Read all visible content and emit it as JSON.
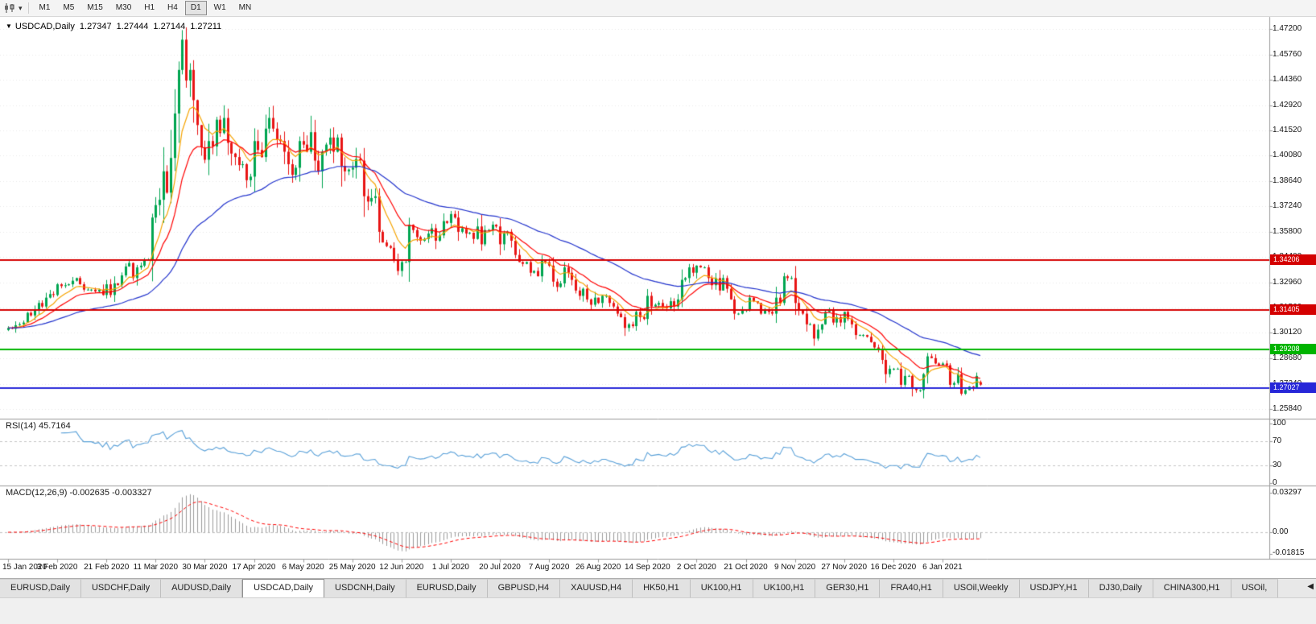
{
  "toolbar": {
    "tool_icon": "chart-periods-icon",
    "dropdown_icon": "▾",
    "timeframes": [
      "M1",
      "M5",
      "M15",
      "M30",
      "H1",
      "H4",
      "D1",
      "W1",
      "MN"
    ],
    "active_timeframe": "D1"
  },
  "chart_header": {
    "collapse_icon": "▼",
    "symbol": "USDCAD,Daily",
    "open": "1.27347",
    "high": "1.27444",
    "low": "1.27144",
    "close": "1.27211"
  },
  "price_axis": {
    "labels": [
      "1.47200",
      "1.45760",
      "1.44360",
      "1.42920",
      "1.41520",
      "1.40080",
      "1.38640",
      "1.37240",
      "1.35800",
      "1.34400",
      "1.32960",
      "1.31560",
      "1.30120",
      "1.28680",
      "1.27240",
      "1.25840"
    ]
  },
  "rsi": {
    "label": "RSI(14) 45.7164",
    "value": 45.7164,
    "axis_labels": [
      "100",
      "70",
      "30",
      "0"
    ],
    "levels": [
      70,
      30
    ]
  },
  "macd": {
    "label": "MACD(12,26,9) -0.002635 -0.003327",
    "macd_value": -0.002635,
    "signal_value": -0.003327,
    "axis_top": "0.03297",
    "axis_zero": "0.00",
    "axis_bottom": "-0.01815"
  },
  "date_axis": {
    "labels": [
      "15 Jan 2020",
      "3 Feb 2020",
      "21 Feb 2020",
      "11 Mar 2020",
      "30 Mar 2020",
      "17 Apr 2020",
      "6 May 2020",
      "25 May 2020",
      "12 Jun 2020",
      "1 Jul 2020",
      "20 Jul 2020",
      "7 Aug 2020",
      "26 Aug 2020",
      "14 Sep 2020",
      "2 Oct 2020",
      "21 Oct 2020",
      "9 Nov 2020",
      "27 Nov 2020",
      "16 Dec 2020",
      "6 Jan 2021"
    ]
  },
  "tabs": {
    "active_index": 3,
    "scroll_left_icon": "◀",
    "items": [
      {
        "label": "EURUSD,Daily"
      },
      {
        "label": "USDCHF,Daily"
      },
      {
        "label": "AUDUSD,Daily"
      },
      {
        "label": "USDCAD,Daily"
      },
      {
        "label": "USDCNH,Daily"
      },
      {
        "label": "EURUSD,Daily"
      },
      {
        "label": "GBPUSD,H4"
      },
      {
        "label": "XAUUSD,H4"
      },
      {
        "label": "HK50,H1"
      },
      {
        "label": "UK100,H1"
      },
      {
        "label": "UK100,H1"
      },
      {
        "label": "GER30,H1"
      },
      {
        "label": "FRA40,H1"
      },
      {
        "label": "USOil,Weekly"
      },
      {
        "label": "USDJPY,H1"
      },
      {
        "label": "DJ30,Daily"
      },
      {
        "label": "CHINA300,H1"
      },
      {
        "label": "USOil,"
      }
    ]
  },
  "chart_data": {
    "type": "candlestick",
    "symbol": "USDCAD",
    "timeframe": "Daily",
    "title": "USDCAD,Daily",
    "x_range": [
      "15 Jan 2020",
      "12 Jan 2021"
    ],
    "y_range": [
      1.2584,
      1.472
    ],
    "last_candle_ohlc": {
      "open": 1.27347,
      "high": 1.27444,
      "low": 1.27144,
      "close": 1.27211
    },
    "colors": {
      "bull": "#00a550",
      "bear": "#e81414"
    },
    "closes": [
      1.304,
      1.3035,
      1.3055,
      1.306,
      1.307,
      1.3125,
      1.311,
      1.3145,
      1.318,
      1.316,
      1.321,
      1.323,
      1.3225,
      1.3285,
      1.3275,
      1.328,
      1.3285,
      1.3305,
      1.332,
      1.3285,
      1.3255,
      1.3255,
      1.3255,
      1.3245,
      1.3255,
      1.3225,
      1.3285,
      1.3225,
      1.329,
      1.328,
      1.3335,
      1.3385,
      1.3405,
      1.332,
      1.338,
      1.339,
      1.342,
      1.3425,
      1.366,
      1.373,
      1.376,
      1.392,
      1.38,
      1.3995,
      1.4245,
      1.449,
      1.466,
      1.443,
      1.449,
      1.432,
      1.418,
      1.4055,
      1.3985,
      1.409,
      1.406,
      1.421,
      1.4135,
      1.422,
      1.408,
      1.402,
      1.4,
      1.3955,
      1.396,
      1.387,
      1.389,
      1.409,
      1.404,
      1.4,
      1.416,
      1.422,
      1.416,
      1.41,
      1.409,
      1.403,
      1.396,
      1.39,
      1.394,
      1.409,
      1.407,
      1.403,
      1.414,
      1.398,
      1.392,
      1.403,
      1.407,
      1.411,
      1.403,
      1.411,
      1.395,
      1.392,
      1.393,
      1.394,
      1.399,
      1.398,
      1.378,
      1.375,
      1.377,
      1.378,
      1.358,
      1.352,
      1.35,
      1.349,
      1.342,
      1.336,
      1.341,
      1.341,
      1.362,
      1.359,
      1.355,
      1.353,
      1.354,
      1.357,
      1.36,
      1.353,
      1.356,
      1.364,
      1.363,
      1.368,
      1.366,
      1.358,
      1.36,
      1.357,
      1.3575,
      1.354,
      1.361,
      1.351,
      1.359,
      1.359,
      1.362,
      1.361,
      1.351,
      1.357,
      1.358,
      1.353,
      1.345,
      1.341,
      1.34,
      1.341,
      1.335,
      1.336,
      1.333,
      1.342,
      1.341,
      1.339,
      1.33,
      1.327,
      1.329,
      1.338,
      1.335,
      1.331,
      1.325,
      1.322,
      1.326,
      1.32,
      1.317,
      1.321,
      1.318,
      1.322,
      1.322,
      1.318,
      1.316,
      1.312,
      1.31,
      1.304,
      1.306,
      1.305,
      1.313,
      1.31,
      1.309,
      1.322,
      1.316,
      1.317,
      1.318,
      1.316,
      1.315,
      1.319,
      1.316,
      1.32,
      1.331,
      1.332,
      1.338,
      1.335,
      1.339,
      1.338,
      1.338,
      1.332,
      1.328,
      1.332,
      1.325,
      1.332,
      1.326,
      1.32,
      1.312,
      1.312,
      1.314,
      1.314,
      1.321,
      1.319,
      1.318,
      1.312,
      1.314,
      1.313,
      1.312,
      1.321,
      1.318,
      1.333,
      1.332,
      1.332,
      1.318,
      1.314,
      1.312,
      1.306,
      1.306,
      1.298,
      1.303,
      1.306,
      1.313,
      1.314,
      1.307,
      1.31,
      1.307,
      1.313,
      1.309,
      1.306,
      1.3,
      1.3,
      1.3,
      1.299,
      1.296,
      1.293,
      1.292,
      1.286,
      1.278,
      1.281,
      1.281,
      1.281,
      1.272,
      1.277,
      1.277,
      1.27,
      1.269,
      1.269,
      1.278,
      1.288,
      1.287,
      1.284,
      1.283,
      1.284,
      1.283,
      1.272,
      1.273,
      1.278,
      1.267,
      1.269,
      1.271,
      1.27,
      1.277,
      1.2721
    ],
    "moving_averages": [
      {
        "period": 8,
        "color": "#f5a300",
        "name": "fast-ma-orange"
      },
      {
        "period": 16,
        "color": "#ff0000",
        "name": "mid-ma-red"
      },
      {
        "period": 50,
        "color": "#2233cc",
        "name": "slow-ma-blue"
      }
    ],
    "levels": [
      {
        "price": "1.34206",
        "value": 1.34206,
        "color": "#d40000"
      },
      {
        "price": "1.31405",
        "value": 1.31405,
        "color": "#d40000"
      },
      {
        "price": "1.29208",
        "value": 1.29208,
        "color": "#00b400"
      },
      {
        "price": "1.27027",
        "value": 1.27027,
        "color": "#2626d8"
      }
    ],
    "indicators": [
      {
        "name": "RSI",
        "params": [
          14
        ],
        "last_value": 45.7164,
        "line_color": "#59a0d8",
        "levels": [
          70,
          30
        ],
        "scale": [
          0,
          100
        ]
      },
      {
        "name": "MACD",
        "params": [
          12,
          26,
          9
        ],
        "macd": -0.002635,
        "signal": -0.003327,
        "histogram_color": "#9b9b9b",
        "signal_color": "#ff0000",
        "scale": [
          -0.01815,
          0.03297
        ]
      }
    ]
  }
}
